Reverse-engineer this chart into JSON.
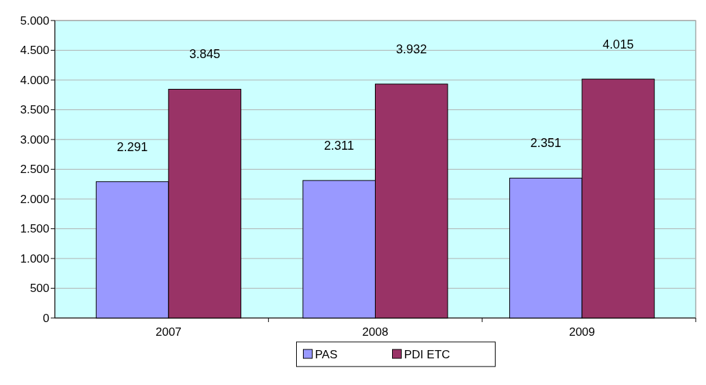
{
  "chart_data": {
    "type": "bar",
    "categories": [
      "2007",
      "2008",
      "2009"
    ],
    "series": [
      {
        "name": "PAS",
        "color": "#9999ff",
        "values": [
          2291,
          2311,
          2351
        ],
        "value_labels": [
          "2.291",
          "2.311",
          "2.351"
        ]
      },
      {
        "name": "PDI ETC",
        "color": "#993366",
        "values": [
          3845,
          3932,
          4015
        ],
        "value_labels": [
          "3.845",
          "3.932",
          "4.015"
        ]
      }
    ],
    "ylim": [
      0,
      5000
    ],
    "yticks": [
      0,
      500,
      {
        "value": 1000,
        "label": "1.000"
      },
      {
        "value": 1500,
        "label": "1.500"
      },
      {
        "value": 2000,
        "label": "2.000"
      },
      {
        "value": 2500,
        "label": "2.500"
      },
      {
        "value": 3000,
        "label": "3.000"
      },
      {
        "value": 3500,
        "label": "3.500"
      },
      {
        "value": 4000,
        "label": "4.000"
      },
      {
        "value": 4500,
        "label": "4.500"
      },
      {
        "value": 5000,
        "label": "5.000"
      }
    ],
    "grid": "y",
    "legend": "bottom"
  }
}
